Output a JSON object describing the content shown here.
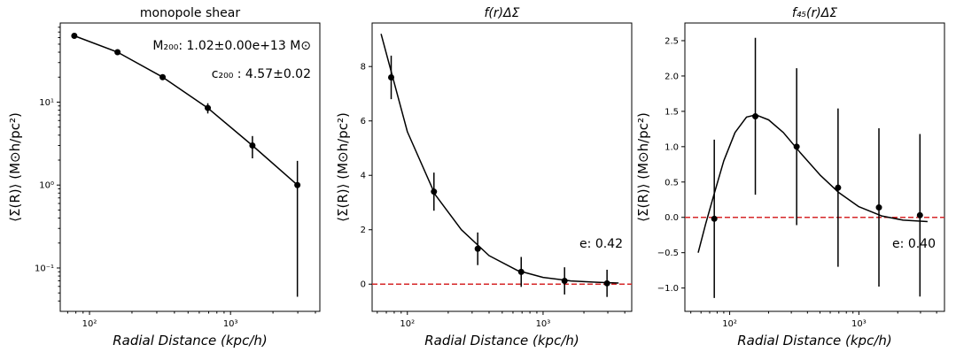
{
  "colors": {
    "data": "#000000",
    "zero_line": "#d62728",
    "background": "#ffffff"
  },
  "chart_data": [
    {
      "type": "scatter",
      "title": "monopole shear",
      "xlabel": "Radial Distance (kpc/h)",
      "ylabel": "⟨Σ(R)⟩ (M⊙h/pc²)",
      "xscale": "log",
      "yscale": "log",
      "xlim": [
        62,
        4300
      ],
      "ylim": [
        0.03,
        90
      ],
      "x_ticks": [
        {
          "v": 100,
          "label": "10²"
        },
        {
          "v": 1000,
          "label": "10³"
        }
      ],
      "y_ticks": [
        {
          "v": 0.1,
          "label": "10⁻¹"
        },
        {
          "v": 1,
          "label": "10⁰"
        },
        {
          "v": 10,
          "label": "10¹"
        }
      ],
      "zero_line": false,
      "series": [
        {
          "points": [
            {
              "x": 78,
              "y": 63,
              "err": 2
            },
            {
              "x": 158,
              "y": 40,
              "err": 1.5
            },
            {
              "x": 330,
              "y": 20,
              "err": 1.2
            },
            {
              "x": 690,
              "y": 8.5,
              "err": 1.2
            },
            {
              "x": 1430,
              "y": 3.0,
              "err": 0.9
            },
            {
              "x": 2980,
              "y": 1.0,
              "err": 0.955
            }
          ],
          "model": [
            [
              78,
              63
            ],
            [
              158,
              40
            ],
            [
              330,
              20
            ],
            [
              690,
              8.5
            ],
            [
              1430,
              3.0
            ],
            [
              2980,
              1.0
            ]
          ]
        }
      ],
      "annotations": [
        {
          "text": "M₂₀₀: 1.02±0.00e+13 M⊙",
          "align": "right-top"
        },
        {
          "text": "c₂₀₀ : 4.57±0.02",
          "align": "right-second"
        }
      ]
    },
    {
      "type": "scatter",
      "title": "f(r)ΔΣ",
      "xlabel": "Radial Distance (kpc/h)",
      "ylabel": "⟨Σ(R)⟩ (M⊙h/pc²)",
      "xscale": "log",
      "yscale": "linear",
      "xlim": [
        55,
        4500
      ],
      "ylim": [
        -1,
        9.6
      ],
      "x_ticks": [
        {
          "v": 100,
          "label": "10²"
        },
        {
          "v": 1000,
          "label": "10³"
        }
      ],
      "y_ticks": [
        {
          "v": 0,
          "label": "0"
        },
        {
          "v": 2,
          "label": "2"
        },
        {
          "v": 4,
          "label": "4"
        },
        {
          "v": 6,
          "label": "6"
        },
        {
          "v": 8,
          "label": "8"
        }
      ],
      "zero_line": true,
      "series": [
        {
          "points": [
            {
              "x": 76,
              "y": 7.6,
              "err": 0.8
            },
            {
              "x": 157,
              "y": 3.4,
              "err": 0.7
            },
            {
              "x": 330,
              "y": 1.3,
              "err": 0.6
            },
            {
              "x": 690,
              "y": 0.45,
              "err": 0.55
            },
            {
              "x": 1440,
              "y": 0.12,
              "err": 0.5
            },
            {
              "x": 2960,
              "y": 0.03,
              "err": 0.5
            }
          ],
          "model": [
            [
              64,
              9.2
            ],
            [
              100,
              5.6
            ],
            [
              160,
              3.3
            ],
            [
              250,
              2.0
            ],
            [
              400,
              1.05
            ],
            [
              650,
              0.5
            ],
            [
              1000,
              0.25
            ],
            [
              1600,
              0.12
            ],
            [
              2500,
              0.07
            ],
            [
              3600,
              0.04
            ]
          ]
        }
      ],
      "annotations": [
        {
          "text": "e: 0.42",
          "align": "right-lower"
        }
      ]
    },
    {
      "type": "scatter",
      "title": "f₄₅(r)ΔΣ",
      "xlabel": "Radial Distance (kpc/h)",
      "ylabel": "⟨Σ(R)⟩ (M⊙h/pc²)",
      "xscale": "log",
      "yscale": "linear",
      "xlim": [
        45,
        4600
      ],
      "ylim": [
        -1.33,
        2.75
      ],
      "x_ticks": [
        {
          "v": 100,
          "label": "10²"
        },
        {
          "v": 1000,
          "label": "10³"
        }
      ],
      "y_ticks": [
        {
          "v": -1.0,
          "label": "−1.0"
        },
        {
          "v": -0.5,
          "label": "−0.5"
        },
        {
          "v": 0.0,
          "label": "0.0"
        },
        {
          "v": 0.5,
          "label": "0.5"
        },
        {
          "v": 1.0,
          "label": "1.0"
        },
        {
          "v": 1.5,
          "label": "1.5"
        },
        {
          "v": 2.0,
          "label": "2.0"
        },
        {
          "v": 2.5,
          "label": "2.5"
        }
      ],
      "zero_line": true,
      "series": [
        {
          "points": [
            {
              "x": 76,
              "y": -0.02,
              "err": 1.12
            },
            {
              "x": 158,
              "y": 1.43,
              "err": 1.11
            },
            {
              "x": 330,
              "y": 1.0,
              "err": 1.11
            },
            {
              "x": 690,
              "y": 0.42,
              "err": 1.12
            },
            {
              "x": 1430,
              "y": 0.14,
              "err": 1.12
            },
            {
              "x": 2970,
              "y": 0.03,
              "err": 1.15
            }
          ],
          "model": [
            [
              57,
              -0.5
            ],
            [
              65,
              -0.1
            ],
            [
              75,
              0.3
            ],
            [
              90,
              0.8
            ],
            [
              110,
              1.2
            ],
            [
              135,
              1.42
            ],
            [
              160,
              1.45
            ],
            [
              200,
              1.38
            ],
            [
              260,
              1.2
            ],
            [
              350,
              0.92
            ],
            [
              500,
              0.6
            ],
            [
              700,
              0.35
            ],
            [
              1000,
              0.15
            ],
            [
              1500,
              0.02
            ],
            [
              2200,
              -0.04
            ],
            [
              3400,
              -0.06
            ]
          ]
        }
      ],
      "annotations": [
        {
          "text": "e: 0.40",
          "align": "right-lower"
        }
      ]
    }
  ]
}
